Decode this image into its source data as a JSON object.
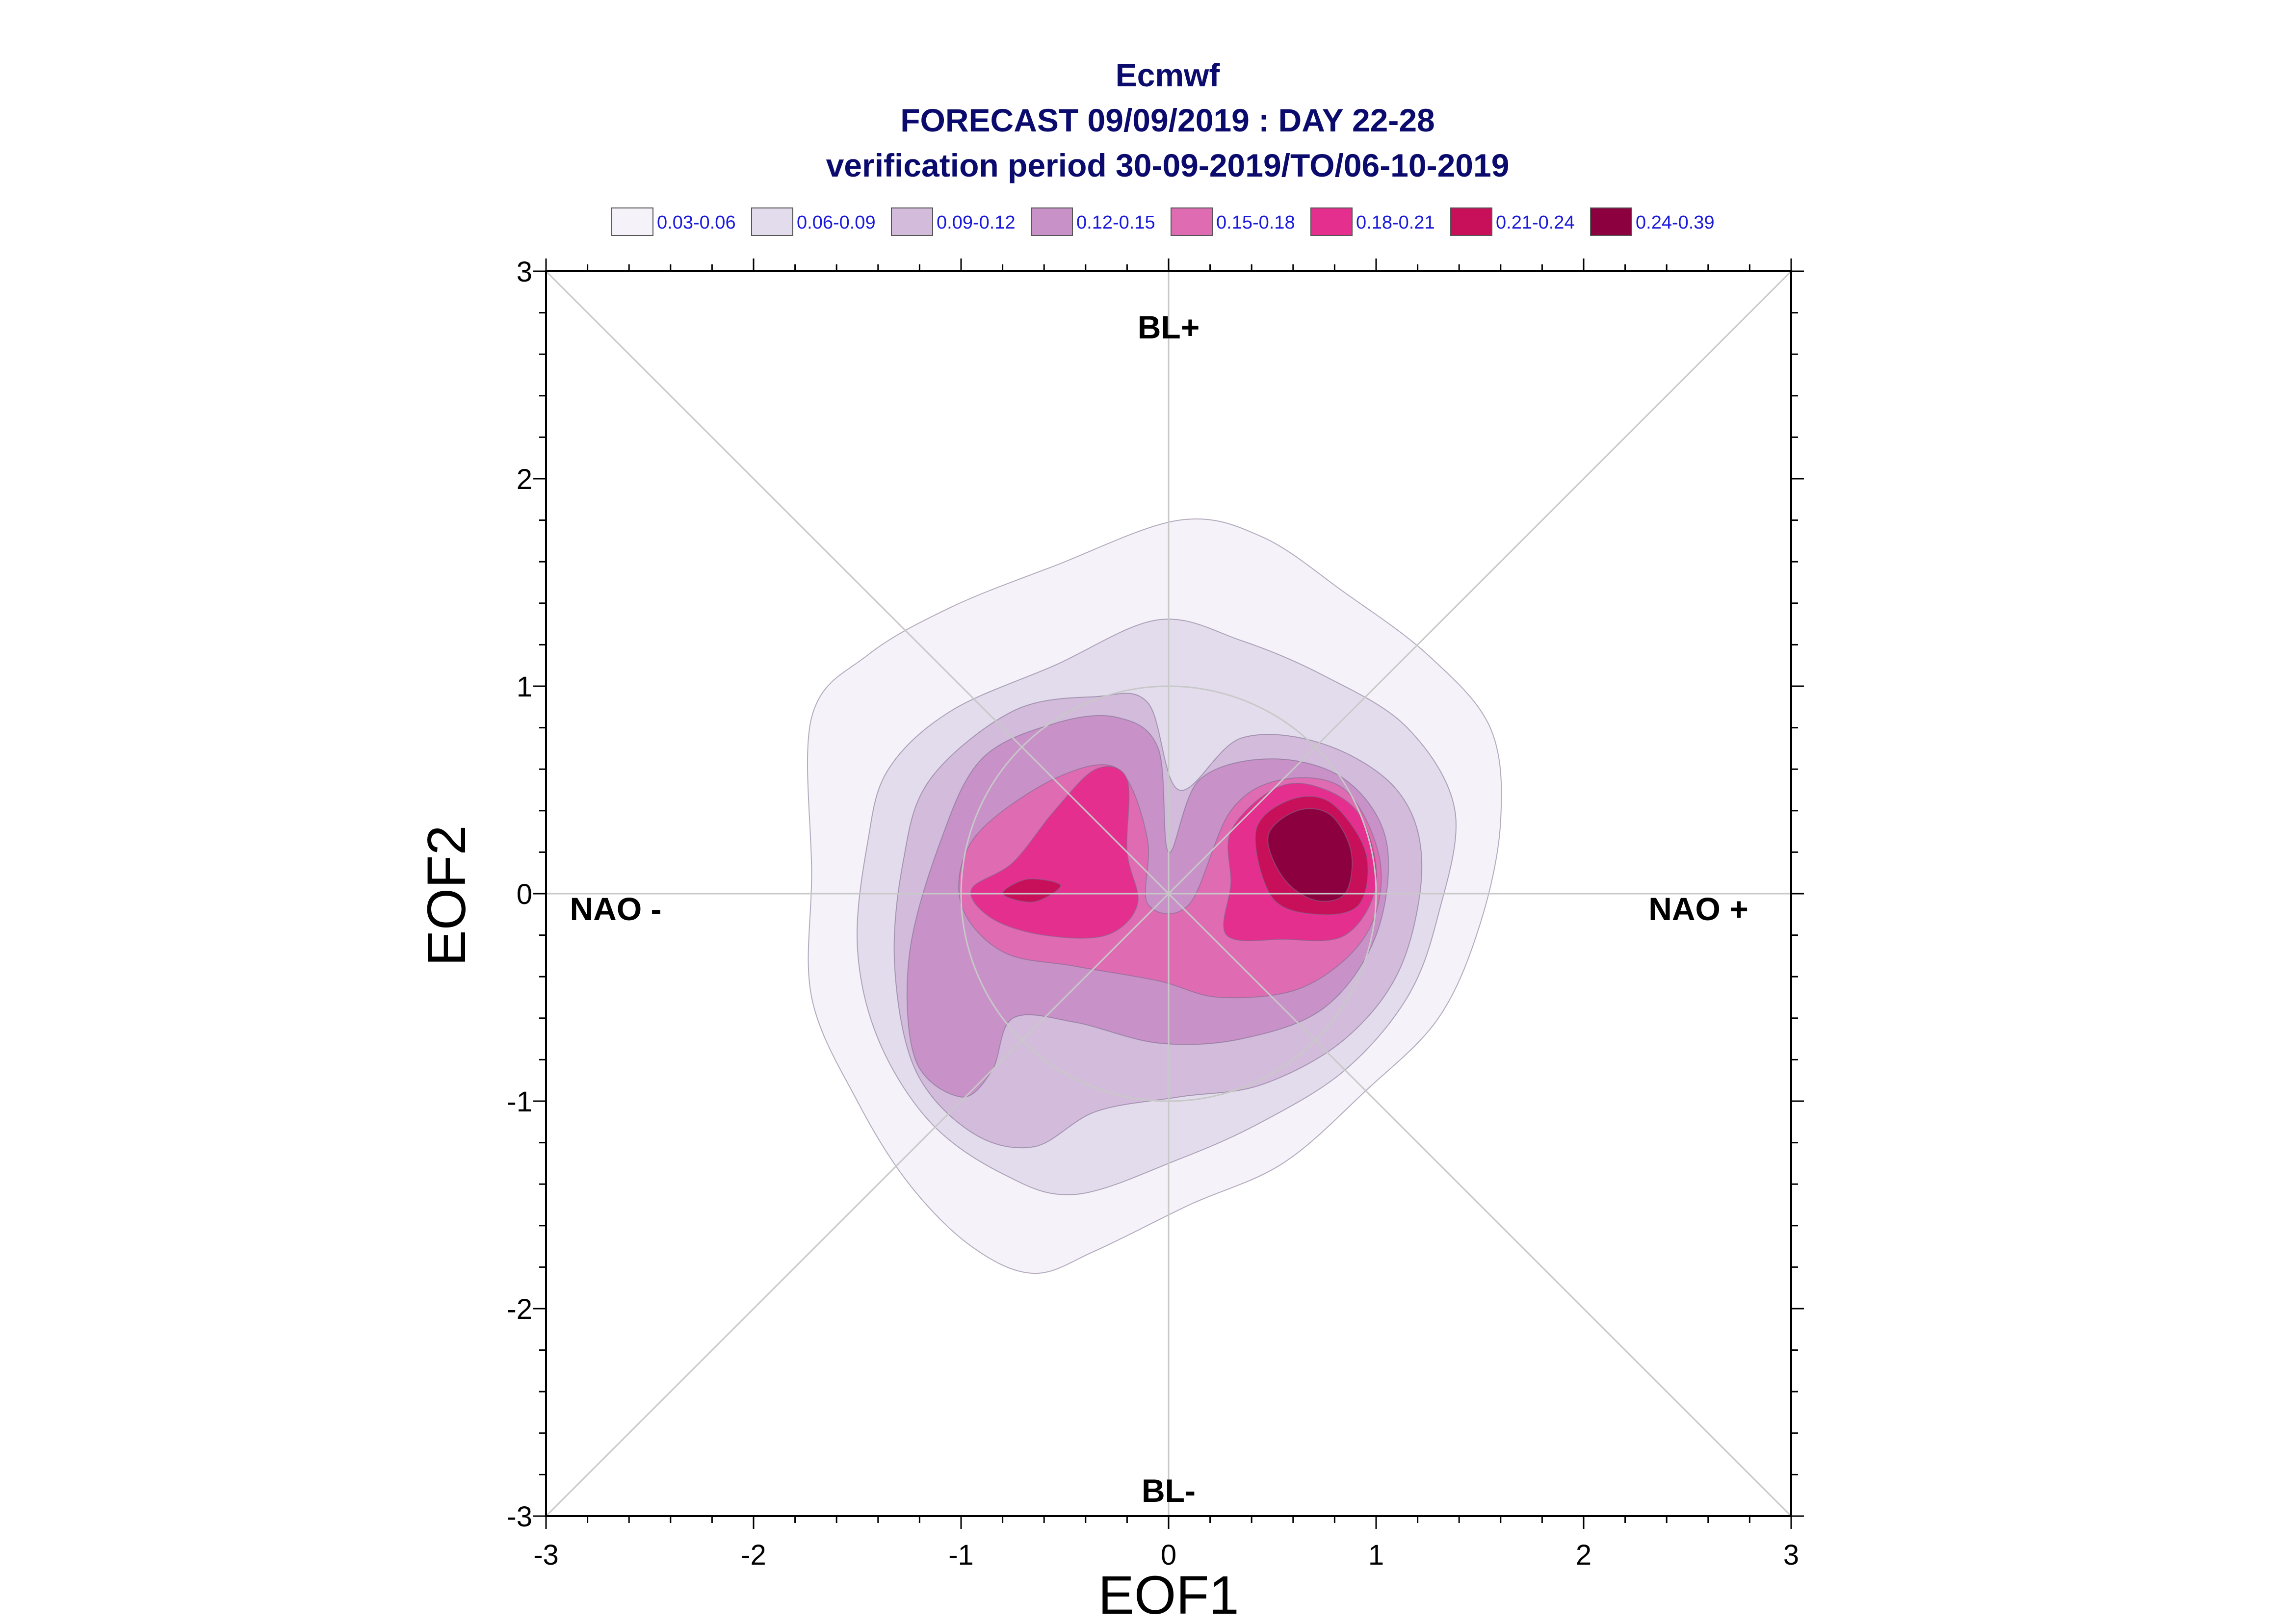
{
  "chart_data": {
    "type": "contour",
    "title": "Ecmwf",
    "subtitle": "FORECAST 09/09/2019 : DAY 22-28",
    "subtitle2": "verification period 30-09-2019/TO/06-10-2019",
    "xlabel": "EOF1",
    "ylabel": "EOF2",
    "xlim": [
      -3,
      3
    ],
    "ylim": [
      -3,
      3
    ],
    "xticks": [
      "-3",
      "-2",
      "-1",
      "0",
      "1",
      "2",
      "3"
    ],
    "yticks": [
      "-3",
      "-2",
      "-1",
      "0",
      "1",
      "2",
      "3"
    ],
    "regime_labels": {
      "top": "BL+",
      "bottom": "BL-",
      "left": "NAO -",
      "right": "NAO +"
    },
    "legend_position": "top",
    "grid": false,
    "levels": [
      {
        "label": "0.03-0.06",
        "color": "#f5f3f9"
      },
      {
        "label": "0.06-0.09",
        "color": "#e3dcec"
      },
      {
        "label": "0.09-0.12",
        "color": "#d3bcdb"
      },
      {
        "label": "0.12-0.15",
        "color": "#c892c8"
      },
      {
        "label": "0.15-0.18",
        "color": "#df6cb3"
      },
      {
        "label": "0.18-0.21",
        "color": "#e52f8f"
      },
      {
        "label": "0.21-0.24",
        "color": "#c8105a"
      },
      {
        "label": "0.24-0.39",
        "color": "#8c0040"
      }
    ],
    "contours": [
      {
        "level": 0,
        "points": [
          [
            -1.72,
            0.85
          ],
          [
            -1.45,
            1.15
          ],
          [
            -1.05,
            1.38
          ],
          [
            -0.55,
            1.58
          ],
          [
            0.05,
            1.8
          ],
          [
            0.45,
            1.72
          ],
          [
            0.85,
            1.45
          ],
          [
            1.25,
            1.15
          ],
          [
            1.55,
            0.8
          ],
          [
            1.6,
            0.35
          ],
          [
            1.5,
            -0.15
          ],
          [
            1.3,
            -0.6
          ],
          [
            0.95,
            -0.95
          ],
          [
            0.55,
            -1.3
          ],
          [
            0.1,
            -1.5
          ],
          [
            -0.35,
            -1.72
          ],
          [
            -0.65,
            -1.83
          ],
          [
            -0.95,
            -1.7
          ],
          [
            -1.25,
            -1.4
          ],
          [
            -1.5,
            -1.0
          ],
          [
            -1.72,
            -0.5
          ],
          [
            -1.72,
            0.1
          ]
        ]
      },
      {
        "level": 1,
        "points": [
          [
            -1.35,
            0.6
          ],
          [
            -1.05,
            0.88
          ],
          [
            -0.55,
            1.1
          ],
          [
            -0.05,
            1.32
          ],
          [
            0.35,
            1.22
          ],
          [
            0.75,
            1.05
          ],
          [
            1.15,
            0.8
          ],
          [
            1.38,
            0.4
          ],
          [
            1.3,
            -0.1
          ],
          [
            1.15,
            -0.5
          ],
          [
            0.85,
            -0.85
          ],
          [
            0.45,
            -1.1
          ],
          [
            0.05,
            -1.28
          ],
          [
            -0.45,
            -1.45
          ],
          [
            -0.8,
            -1.35
          ],
          [
            -1.15,
            -1.1
          ],
          [
            -1.4,
            -0.7
          ],
          [
            -1.5,
            -0.25
          ],
          [
            -1.45,
            0.25
          ]
        ]
      },
      {
        "level": 2,
        "points": [
          [
            -1.15,
            0.55
          ],
          [
            -0.75,
            0.88
          ],
          [
            -0.35,
            0.95
          ],
          [
            -0.1,
            0.92
          ],
          [
            0.05,
            0.5
          ],
          [
            0.35,
            0.75
          ],
          [
            0.75,
            0.72
          ],
          [
            1.1,
            0.5
          ],
          [
            1.22,
            0.15
          ],
          [
            1.12,
            -0.35
          ],
          [
            0.85,
            -0.7
          ],
          [
            0.45,
            -0.92
          ],
          [
            0.05,
            -0.98
          ],
          [
            -0.35,
            -1.05
          ],
          [
            -0.65,
            -1.22
          ],
          [
            -0.95,
            -1.15
          ],
          [
            -1.22,
            -0.85
          ],
          [
            -1.32,
            -0.35
          ],
          [
            -1.28,
            0.15
          ]
        ]
      },
      {
        "level": 3,
        "points": [
          [
            -0.9,
            0.65
          ],
          [
            -0.55,
            0.82
          ],
          [
            -0.25,
            0.85
          ],
          [
            -0.05,
            0.7
          ],
          [
            0.0,
            0.2
          ],
          [
            0.15,
            0.55
          ],
          [
            0.5,
            0.65
          ],
          [
            0.85,
            0.55
          ],
          [
            1.05,
            0.25
          ],
          [
            1.0,
            -0.2
          ],
          [
            0.75,
            -0.55
          ],
          [
            0.35,
            -0.7
          ],
          [
            -0.05,
            -0.72
          ],
          [
            -0.45,
            -0.62
          ],
          [
            -0.75,
            -0.6
          ],
          [
            -0.85,
            -0.85
          ],
          [
            -1.0,
            -0.98
          ],
          [
            -1.22,
            -0.8
          ],
          [
            -1.25,
            -0.3
          ],
          [
            -1.1,
            0.25
          ]
        ]
      },
      {
        "level": 4,
        "points": [
          [
            -0.95,
            0.25
          ],
          [
            -0.65,
            0.5
          ],
          [
            -0.35,
            0.62
          ],
          [
            -0.2,
            0.55
          ],
          [
            -0.1,
            0.25
          ],
          [
            -0.1,
            -0.05
          ],
          [
            0.1,
            -0.05
          ],
          [
            0.3,
            0.4
          ],
          [
            0.55,
            0.55
          ],
          [
            0.85,
            0.5
          ],
          [
            1.02,
            0.15
          ],
          [
            0.95,
            -0.2
          ],
          [
            0.65,
            -0.45
          ],
          [
            0.25,
            -0.5
          ],
          [
            -0.05,
            -0.42
          ],
          [
            -0.45,
            -0.35
          ],
          [
            -0.8,
            -0.28
          ],
          [
            -1.0,
            -0.05
          ]
        ]
      },
      {
        "level": 5,
        "points": [
          [
            -0.95,
            0.02
          ],
          [
            -0.75,
            0.15
          ],
          [
            -0.55,
            0.4
          ],
          [
            -0.35,
            0.6
          ],
          [
            -0.2,
            0.55
          ],
          [
            -0.2,
            0.2
          ],
          [
            -0.15,
            -0.05
          ],
          [
            -0.3,
            -0.2
          ],
          [
            -0.6,
            -0.2
          ],
          [
            -0.85,
            -0.12
          ]
        ]
      },
      {
        "level": 5,
        "points": [
          [
            0.3,
            0.3
          ],
          [
            0.5,
            0.5
          ],
          [
            0.7,
            0.52
          ],
          [
            0.92,
            0.38
          ],
          [
            1.0,
            0.05
          ],
          [
            0.85,
            -0.2
          ],
          [
            0.55,
            -0.22
          ],
          [
            0.28,
            -0.2
          ],
          [
            0.3,
            0.05
          ]
        ]
      },
      {
        "level": 6,
        "points": [
          [
            -0.8,
            0.0
          ],
          [
            -0.68,
            0.07
          ],
          [
            -0.52,
            0.04
          ],
          [
            -0.65,
            -0.04
          ]
        ]
      },
      {
        "level": 6,
        "points": [
          [
            0.42,
            0.3
          ],
          [
            0.58,
            0.45
          ],
          [
            0.78,
            0.44
          ],
          [
            0.95,
            0.2
          ],
          [
            0.92,
            -0.05
          ],
          [
            0.72,
            -0.1
          ],
          [
            0.5,
            -0.02
          ]
        ]
      },
      {
        "level": 7,
        "points": [
          [
            0.48,
            0.28
          ],
          [
            0.62,
            0.4
          ],
          [
            0.78,
            0.38
          ],
          [
            0.88,
            0.2
          ],
          [
            0.85,
            0.0
          ],
          [
            0.7,
            -0.03
          ],
          [
            0.55,
            0.08
          ]
        ]
      }
    ]
  }
}
